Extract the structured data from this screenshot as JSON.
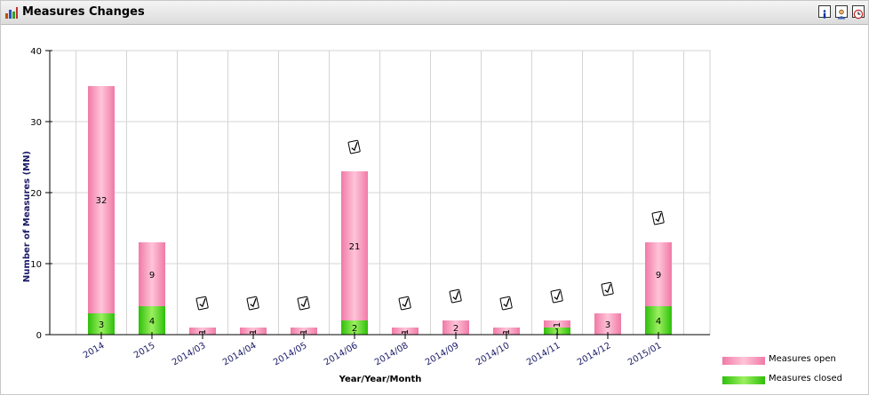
{
  "window": {
    "title": "Measures Changes"
  },
  "toolbar": {
    "buttons": [
      {
        "name": "info-icon",
        "glyph": "i"
      },
      {
        "name": "user-icon",
        "glyph": "☺"
      },
      {
        "name": "clock-icon",
        "glyph": "◷"
      }
    ]
  },
  "colors": {
    "open": "#f08cb0",
    "closed": "#44d024",
    "axis_text": "#1a1a66"
  },
  "chart_data": {
    "type": "bar",
    "stacked": true,
    "categories": [
      "2014",
      "2015",
      "2014/03",
      "2014/04",
      "2014/05",
      "2014/06",
      "2014/08",
      "2014/09",
      "2014/10",
      "2014/11",
      "2014/12",
      "2015/01"
    ],
    "series": [
      {
        "name": "Measures closed",
        "values": [
          3,
          4,
          0,
          0,
          0,
          2,
          0,
          0,
          0,
          1,
          0,
          4
        ]
      },
      {
        "name": "Measures open",
        "values": [
          32,
          9,
          1,
          1,
          1,
          21,
          1,
          2,
          1,
          1,
          3,
          9
        ]
      }
    ],
    "markers": [
      false,
      false,
      true,
      true,
      true,
      true,
      true,
      true,
      true,
      true,
      true,
      true
    ],
    "xlabel": "Year/Year/Month",
    "ylabel": "Number of Measures (MN)",
    "ylim": [
      0,
      40
    ],
    "yticks": [
      0,
      10,
      20,
      30,
      40
    ],
    "grid": true,
    "legend_position": "bottom-right"
  }
}
